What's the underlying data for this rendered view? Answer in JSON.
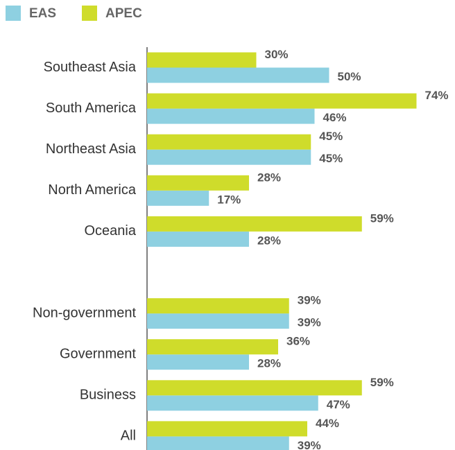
{
  "chart_data": {
    "type": "hbar",
    "categories": [
      "Southeast Asia",
      "South America",
      "Northeast Asia",
      "North America",
      "Oceania",
      null,
      "Non-government",
      "Government",
      "Business",
      "All"
    ],
    "series": [
      {
        "name": "EAS",
        "color": "#8ed0e1",
        "values": [
          50,
          46,
          45,
          17,
          28,
          null,
          39,
          28,
          47,
          39
        ],
        "value_labels": [
          "50%",
          "46%",
          "45%",
          "17%",
          "28%",
          null,
          "39%",
          "28%",
          "47%",
          "39%"
        ]
      },
      {
        "name": "APEC",
        "color": "#cfdc2b",
        "values": [
          30,
          74,
          45,
          28,
          59,
          null,
          39,
          36,
          59,
          44
        ],
        "value_labels": [
          "30%",
          "74%",
          "45%",
          "28%",
          "59%",
          null,
          "39%",
          "36%",
          "59%",
          "44%"
        ]
      }
    ]
  }
}
